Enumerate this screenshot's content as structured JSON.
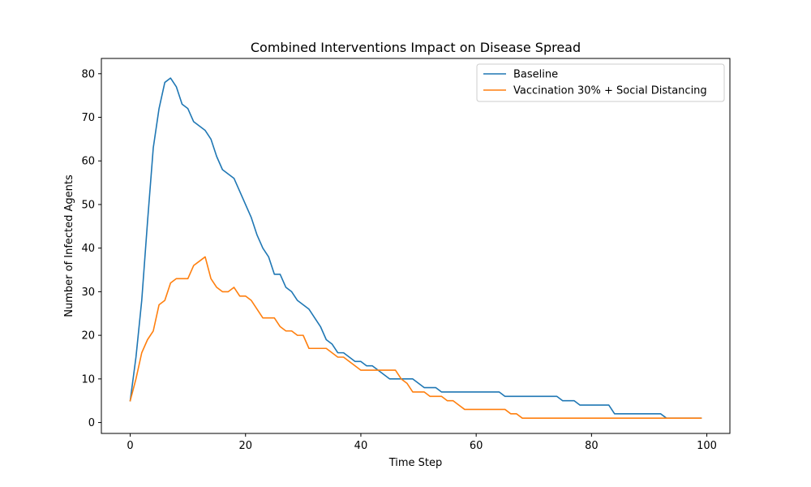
{
  "chart_data": {
    "type": "line",
    "title": "Combined Interventions Impact on Disease Spread",
    "xlabel": "Time Step",
    "ylabel": "Number of Infected Agents",
    "xlim": [
      -5,
      104
    ],
    "ylim": [
      -2.5,
      83.5
    ],
    "xticks": [
      0,
      20,
      40,
      60,
      80,
      100
    ],
    "yticks": [
      0,
      10,
      20,
      30,
      40,
      50,
      60,
      70,
      80
    ],
    "grid": false,
    "legend_position": "top-right",
    "series": [
      {
        "name": "Baseline",
        "color": "#1f77b4",
        "x": [
          0,
          1,
          2,
          3,
          4,
          5,
          6,
          7,
          8,
          9,
          10,
          11,
          12,
          13,
          14,
          15,
          16,
          17,
          18,
          19,
          20,
          21,
          22,
          23,
          24,
          25,
          26,
          27,
          28,
          29,
          30,
          31,
          32,
          33,
          34,
          35,
          36,
          37,
          38,
          39,
          40,
          41,
          42,
          43,
          44,
          45,
          46,
          47,
          48,
          49,
          50,
          51,
          52,
          53,
          54,
          55,
          56,
          57,
          58,
          59,
          60,
          61,
          62,
          63,
          64,
          65,
          66,
          67,
          68,
          69,
          70,
          71,
          72,
          73,
          74,
          75,
          76,
          77,
          78,
          79,
          80,
          81,
          82,
          83,
          84,
          85,
          86,
          87,
          88,
          89,
          90,
          91,
          92,
          93,
          94,
          95,
          96,
          97,
          98,
          99
        ],
        "values": [
          5,
          15,
          28,
          46,
          63,
          72,
          78,
          79,
          77,
          73,
          72,
          69,
          68,
          67,
          65,
          61,
          58,
          57,
          56,
          53,
          50,
          47,
          43,
          40,
          38,
          34,
          34,
          31,
          30,
          28,
          27,
          26,
          24,
          22,
          19,
          18,
          16,
          16,
          15,
          14,
          14,
          13,
          13,
          12,
          11,
          10,
          10,
          10,
          10,
          10,
          9,
          8,
          8,
          8,
          7,
          7,
          7,
          7,
          7,
          7,
          7,
          7,
          7,
          7,
          7,
          6,
          6,
          6,
          6,
          6,
          6,
          6,
          6,
          6,
          6,
          5,
          5,
          5,
          4,
          4,
          4,
          4,
          4,
          4,
          2,
          2,
          2,
          2,
          2,
          2,
          2,
          2,
          2,
          1,
          1,
          1,
          1,
          1,
          1,
          1
        ]
      },
      {
        "name": "Vaccination 30% + Social Distancing",
        "color": "#ff7f0e",
        "x": [
          0,
          1,
          2,
          3,
          4,
          5,
          6,
          7,
          8,
          9,
          10,
          11,
          12,
          13,
          14,
          15,
          16,
          17,
          18,
          19,
          20,
          21,
          22,
          23,
          24,
          25,
          26,
          27,
          28,
          29,
          30,
          31,
          32,
          33,
          34,
          35,
          36,
          37,
          38,
          39,
          40,
          41,
          42,
          43,
          44,
          45,
          46,
          47,
          48,
          49,
          50,
          51,
          52,
          53,
          54,
          55,
          56,
          57,
          58,
          59,
          60,
          61,
          62,
          63,
          64,
          65,
          66,
          67,
          68,
          69,
          70,
          71,
          72,
          73,
          74,
          75,
          76,
          77,
          78,
          79,
          80,
          81,
          82,
          83,
          84,
          85,
          86,
          87,
          88,
          89,
          90,
          91,
          92,
          93,
          94,
          95,
          96,
          97,
          98,
          99
        ],
        "values": [
          5,
          10,
          16,
          19,
          21,
          27,
          28,
          32,
          33,
          33,
          33,
          36,
          37,
          38,
          33,
          31,
          30,
          30,
          31,
          29,
          29,
          28,
          26,
          24,
          24,
          24,
          22,
          21,
          21,
          20,
          20,
          17,
          17,
          17,
          17,
          16,
          15,
          15,
          14,
          13,
          12,
          12,
          12,
          12,
          12,
          12,
          12,
          10,
          9,
          7,
          7,
          7,
          6,
          6,
          6,
          5,
          5,
          4,
          3,
          3,
          3,
          3,
          3,
          3,
          3,
          3,
          2,
          2,
          1,
          1,
          1,
          1,
          1,
          1,
          1,
          1,
          1,
          1,
          1,
          1,
          1,
          1,
          1,
          1,
          1,
          1,
          1,
          1,
          1,
          1,
          1,
          1,
          1,
          1,
          1,
          1,
          1,
          1,
          1,
          1
        ]
      }
    ]
  }
}
